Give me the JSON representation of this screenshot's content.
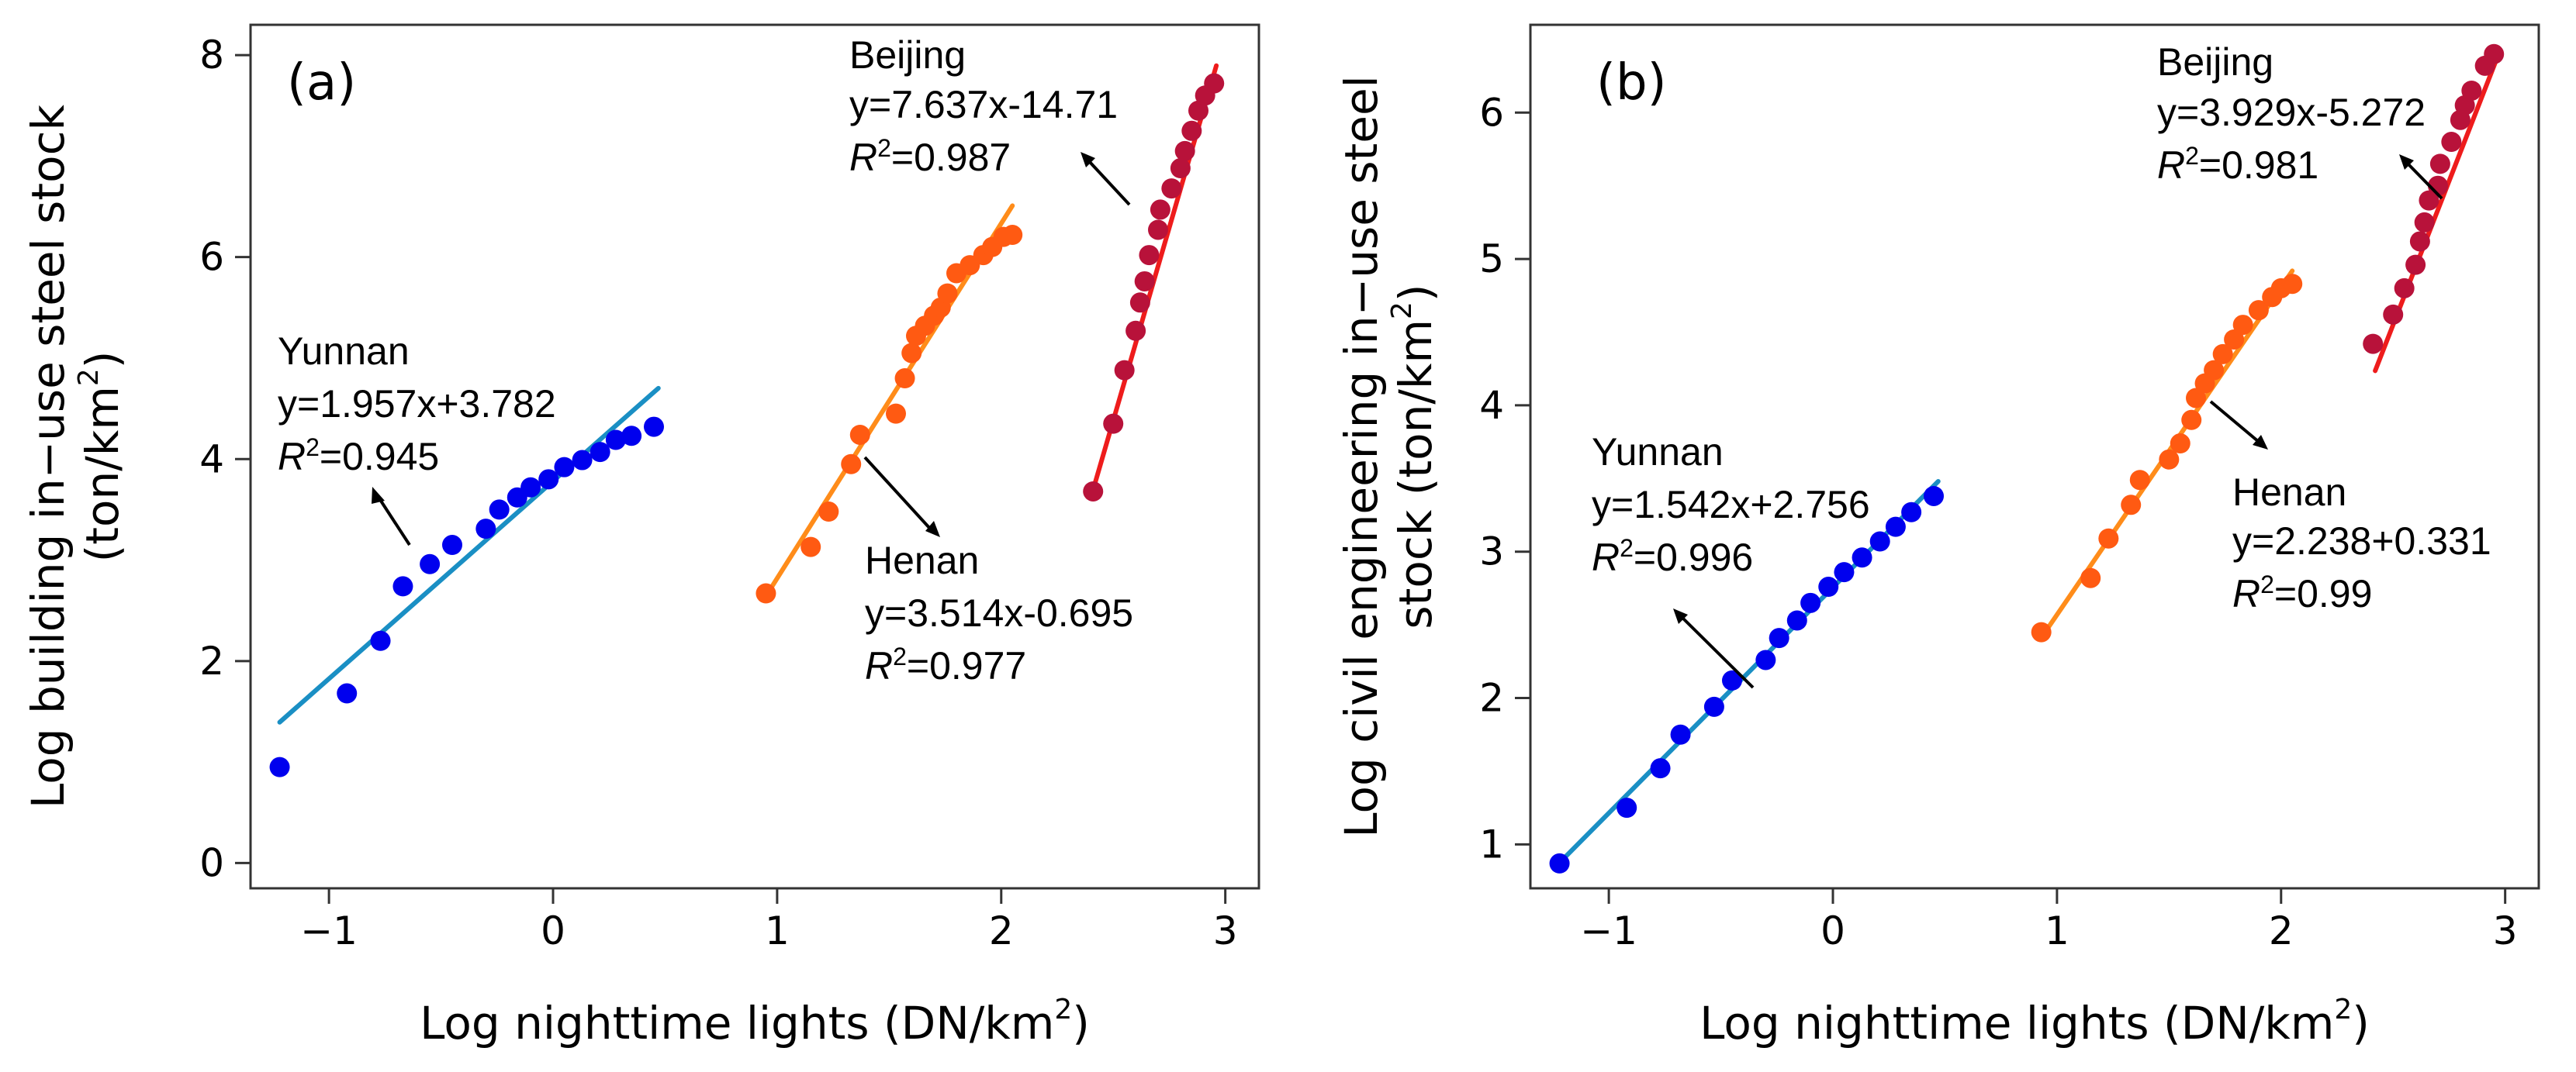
{
  "chart_data": [
    {
      "panel": "a",
      "type": "scatter",
      "tag": "(a)",
      "xlabel": "Log nighttime lights (DN/km",
      "xlabel_sup": "2",
      "xlabel_end": ")",
      "ylabel_line1": "Log building in−use steel stock",
      "ylabel_line2": "(ton/km",
      "ylabel_sup": "2",
      "ylabel_end": ")",
      "xlim": [
        -1.35,
        3.15
      ],
      "ylim": [
        -0.25,
        8.3
      ],
      "xticks": [
        -1,
        0,
        1,
        2,
        3
      ],
      "xtick_labels": [
        "−1",
        "0",
        "1",
        "2",
        "3"
      ],
      "yticks": [
        0,
        2,
        4,
        6,
        8
      ],
      "ytick_labels": [
        "0",
        "2",
        "4",
        "6",
        "8"
      ],
      "series": [
        {
          "name": "Yunnan",
          "point_color": "#0000ee",
          "line_color": "#1a8fc4",
          "fit": {
            "slope": 1.957,
            "intercept": 3.782,
            "x_range": [
              -1.22,
              0.47
            ]
          },
          "points": [
            [
              -1.22,
              0.95
            ],
            [
              -0.92,
              1.68
            ],
            [
              -0.77,
              2.2
            ],
            [
              -0.67,
              2.74
            ],
            [
              -0.55,
              2.96
            ],
            [
              -0.45,
              3.15
            ],
            [
              -0.3,
              3.31
            ],
            [
              -0.24,
              3.5
            ],
            [
              -0.16,
              3.62
            ],
            [
              -0.1,
              3.72
            ],
            [
              -0.02,
              3.8
            ],
            [
              0.05,
              3.92
            ],
            [
              0.13,
              3.99
            ],
            [
              0.21,
              4.07
            ],
            [
              0.28,
              4.19
            ],
            [
              0.35,
              4.23
            ],
            [
              0.45,
              4.32
            ]
          ],
          "label": "Yunnan",
          "equation": "y=1.957x+3.782",
          "r2_label": "R",
          "r2_sup": "2",
          "r2_value": "=0.945"
        },
        {
          "name": "Henan",
          "point_color": "#ff5a12",
          "line_color": "#ff8c1a",
          "fit": {
            "slope": 3.514,
            "intercept": -0.695,
            "x_range": [
              0.95,
              2.05
            ]
          },
          "points": [
            [
              0.95,
              2.67
            ],
            [
              1.15,
              3.13
            ],
            [
              1.23,
              3.48
            ],
            [
              1.33,
              3.95
            ],
            [
              1.37,
              4.24
            ],
            [
              1.53,
              4.45
            ],
            [
              1.57,
              4.8
            ],
            [
              1.6,
              5.05
            ],
            [
              1.62,
              5.22
            ],
            [
              1.66,
              5.32
            ],
            [
              1.7,
              5.42
            ],
            [
              1.73,
              5.5
            ],
            [
              1.76,
              5.64
            ],
            [
              1.8,
              5.84
            ],
            [
              1.86,
              5.92
            ],
            [
              1.92,
              6.02
            ],
            [
              1.96,
              6.1
            ],
            [
              2.01,
              6.2
            ],
            [
              2.05,
              6.22
            ]
          ],
          "label": "Henan",
          "equation": "y=3.514x-0.695",
          "r2_label": "R",
          "r2_sup": "2",
          "r2_value": "=0.977"
        },
        {
          "name": "Beijing",
          "point_color": "#b8123a",
          "line_color": "#ee1c1c",
          "fit": {
            "slope": 7.637,
            "intercept": -14.71,
            "x_range": [
              2.41,
              2.96
            ]
          },
          "points": [
            [
              2.41,
              3.68
            ],
            [
              2.5,
              4.35
            ],
            [
              2.55,
              4.88
            ],
            [
              2.6,
              5.27
            ],
            [
              2.62,
              5.55
            ],
            [
              2.64,
              5.76
            ],
            [
              2.66,
              6.02
            ],
            [
              2.7,
              6.27
            ],
            [
              2.71,
              6.47
            ],
            [
              2.76,
              6.68
            ],
            [
              2.8,
              6.88
            ],
            [
              2.82,
              7.05
            ],
            [
              2.85,
              7.25
            ],
            [
              2.88,
              7.45
            ],
            [
              2.91,
              7.6
            ],
            [
              2.95,
              7.72
            ]
          ],
          "label": "Beijing",
          "equation": "y=7.637x-14.71",
          "r2_label": "R",
          "r2_sup": "2",
          "r2_value": "=0.987"
        }
      ]
    },
    {
      "panel": "b",
      "type": "scatter",
      "tag": "(b)",
      "xlabel": "Log nighttime lights (DN/km",
      "xlabel_sup": "2",
      "xlabel_end": ")",
      "ylabel_line1": "Log civil engineering in−use steel",
      "ylabel_line2": "stock (ton/km",
      "ylabel_sup": "2",
      "ylabel_end": ")",
      "xlim": [
        -1.35,
        3.15
      ],
      "ylim": [
        0.7,
        6.6
      ],
      "xticks": [
        -1,
        0,
        1,
        2,
        3
      ],
      "xtick_labels": [
        "−1",
        "0",
        "1",
        "2",
        "3"
      ],
      "yticks": [
        1,
        2,
        3,
        4,
        5,
        6
      ],
      "ytick_labels": [
        "1",
        "2",
        "3",
        "4",
        "5",
        "6"
      ],
      "series": [
        {
          "name": "Yunnan",
          "point_color": "#0000ee",
          "line_color": "#1a8fc4",
          "fit": {
            "slope": 1.542,
            "intercept": 2.756,
            "x_range": [
              -1.22,
              0.47
            ]
          },
          "points": [
            [
              -1.22,
              0.87
            ],
            [
              -0.92,
              1.25
            ],
            [
              -0.77,
              1.52
            ],
            [
              -0.68,
              1.75
            ],
            [
              -0.53,
              1.94
            ],
            [
              -0.45,
              2.12
            ],
            [
              -0.3,
              2.26
            ],
            [
              -0.24,
              2.41
            ],
            [
              -0.16,
              2.53
            ],
            [
              -0.1,
              2.65
            ],
            [
              -0.02,
              2.76
            ],
            [
              0.05,
              2.86
            ],
            [
              0.13,
              2.96
            ],
            [
              0.21,
              3.07
            ],
            [
              0.28,
              3.17
            ],
            [
              0.35,
              3.27
            ],
            [
              0.45,
              3.38
            ]
          ],
          "label": "Yunnan",
          "equation": "y=1.542x+2.756",
          "r2_label": "R",
          "r2_sup": "2",
          "r2_value": "=0.996"
        },
        {
          "name": "Henan",
          "point_color": "#ff5a12",
          "line_color": "#ff8c1a",
          "fit": {
            "slope": 2.238,
            "intercept": 0.331,
            "x_range": [
              0.95,
              2.05
            ]
          },
          "points": [
            [
              0.93,
              2.45
            ],
            [
              1.15,
              2.82
            ],
            [
              1.23,
              3.09
            ],
            [
              1.33,
              3.32
            ],
            [
              1.37,
              3.49
            ],
            [
              1.5,
              3.63
            ],
            [
              1.55,
              3.74
            ],
            [
              1.6,
              3.9
            ],
            [
              1.62,
              4.05
            ],
            [
              1.66,
              4.15
            ],
            [
              1.7,
              4.24
            ],
            [
              1.74,
              4.35
            ],
            [
              1.79,
              4.45
            ],
            [
              1.83,
              4.55
            ],
            [
              1.9,
              4.65
            ],
            [
              1.96,
              4.74
            ],
            [
              2.0,
              4.8
            ],
            [
              2.05,
              4.83
            ]
          ],
          "label": "Henan",
          "equation": "y=2.238+0.331",
          "r2_label": "R",
          "r2_sup": "2",
          "r2_value": "=0.99"
        },
        {
          "name": "Beijing",
          "point_color": "#b8123a",
          "line_color": "#ee1c1c",
          "fit": {
            "slope": 3.929,
            "intercept": -5.272,
            "x_range": [
              2.42,
              2.96
            ]
          },
          "points": [
            [
              2.41,
              4.42
            ],
            [
              2.5,
              4.62
            ],
            [
              2.55,
              4.8
            ],
            [
              2.6,
              4.96
            ],
            [
              2.62,
              5.12
            ],
            [
              2.64,
              5.25
            ],
            [
              2.66,
              5.4
            ],
            [
              2.7,
              5.5
            ],
            [
              2.71,
              5.65
            ],
            [
              2.76,
              5.8
            ],
            [
              2.8,
              5.95
            ],
            [
              2.82,
              6.05
            ],
            [
              2.85,
              6.15
            ],
            [
              2.91,
              6.32
            ],
            [
              2.95,
              6.4
            ]
          ],
          "label": "Beijing",
          "equation": "y=3.929x-5.272",
          "r2_label": "R",
          "r2_sup": "2",
          "r2_value": "=0.981"
        }
      ]
    }
  ]
}
